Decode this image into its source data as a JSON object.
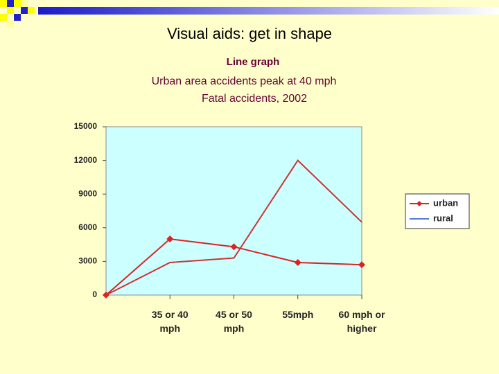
{
  "slide": {
    "title": "Visual aids: get in shape"
  },
  "chart_data": {
    "type": "line",
    "title": "Line graph",
    "subtitle": "Urban area accidents peak at 40 mph",
    "caption": "Fatal accidents, 2002",
    "categories": [
      null,
      "35 or 40 mph",
      "45 or 50 mph",
      "55mph",
      "60 mph or higher"
    ],
    "series": [
      {
        "name": "urban",
        "color": "#dd2222",
        "legend_color": "#dd2222",
        "marker": "diamond",
        "values": [
          0,
          5000,
          4300,
          2900,
          2700
        ]
      },
      {
        "name": "rural",
        "color": "#cc3333",
        "legend_color": "#5577dd",
        "marker": null,
        "values": [
          0,
          2900,
          3300,
          12000,
          6500
        ]
      }
    ],
    "ylim": [
      0,
      15000
    ],
    "yticks": [
      0,
      3000,
      6000,
      9000,
      12000,
      15000
    ],
    "plot_background": "#ccffff",
    "legend": "right"
  }
}
